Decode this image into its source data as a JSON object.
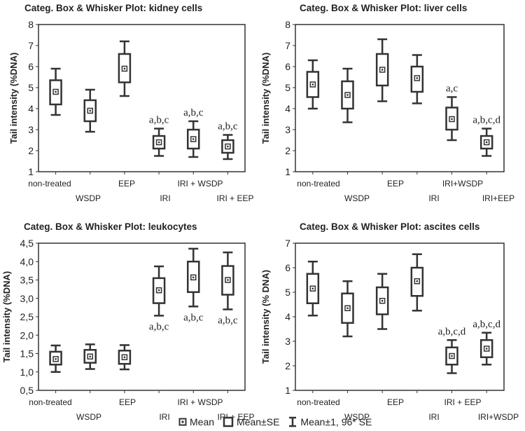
{
  "chart_data": [
    {
      "type": "box",
      "title": "Categ. Box & Whisker Plot: kidney cells",
      "ylabel": "Tail intensity (%DNA)",
      "ylim": [
        1,
        8
      ],
      "yticks": [
        1,
        2,
        3,
        4,
        5,
        6,
        7,
        8
      ],
      "categories": [
        "non-treated",
        "WSDP",
        "EEP",
        "IRI",
        "IRI + WSDP",
        "IRI + EEP"
      ],
      "boxes": [
        {
          "mean": 4.8,
          "se_low": 4.2,
          "se_high": 5.35,
          "ci_low": 3.7,
          "ci_high": 5.9,
          "annotation": ""
        },
        {
          "mean": 3.9,
          "se_low": 3.4,
          "se_high": 4.4,
          "ci_low": 2.9,
          "ci_high": 4.9,
          "annotation": ""
        },
        {
          "mean": 5.9,
          "se_low": 5.25,
          "se_high": 6.6,
          "ci_low": 4.6,
          "ci_high": 7.2,
          "annotation": ""
        },
        {
          "mean": 2.4,
          "se_low": 2.1,
          "se_high": 2.7,
          "ci_low": 1.75,
          "ci_high": 3.05,
          "annotation": "a,b,c"
        },
        {
          "mean": 2.55,
          "se_low": 2.1,
          "se_high": 3.0,
          "ci_low": 1.7,
          "ci_high": 3.4,
          "annotation": "a,b,c"
        },
        {
          "mean": 2.2,
          "se_low": 1.9,
          "se_high": 2.5,
          "ci_low": 1.6,
          "ci_high": 2.75,
          "annotation": "a,b,c"
        }
      ]
    },
    {
      "type": "box",
      "title": "Categ. Box & Whisker Plot: liver cells",
      "ylabel": "Tail intensity (%DNA)",
      "ylim": [
        1,
        8
      ],
      "yticks": [
        1,
        2,
        3,
        4,
        5,
        6,
        7,
        8
      ],
      "categories": [
        "non-treated",
        "WSDP",
        "EEP",
        "IRI",
        "IRI+WSDP",
        "IRI+EEP"
      ],
      "boxes": [
        {
          "mean": 5.15,
          "se_low": 4.55,
          "se_high": 5.75,
          "ci_low": 4.0,
          "ci_high": 6.3,
          "annotation": ""
        },
        {
          "mean": 4.65,
          "se_low": 4.0,
          "se_high": 5.3,
          "ci_low": 3.35,
          "ci_high": 5.9,
          "annotation": ""
        },
        {
          "mean": 5.85,
          "se_low": 5.1,
          "se_high": 6.6,
          "ci_low": 4.35,
          "ci_high": 7.3,
          "annotation": ""
        },
        {
          "mean": 5.45,
          "se_low": 4.8,
          "se_high": 6.0,
          "ci_low": 4.25,
          "ci_high": 6.55,
          "annotation": ""
        },
        {
          "mean": 3.5,
          "se_low": 3.0,
          "se_high": 4.05,
          "ci_low": 2.5,
          "ci_high": 4.55,
          "annotation": "a,c"
        },
        {
          "mean": 2.4,
          "se_low": 2.1,
          "se_high": 2.7,
          "ci_low": 1.75,
          "ci_high": 3.05,
          "annotation": "a,b,c,d"
        }
      ]
    },
    {
      "type": "box",
      "title": "Categ. Box & Whisker Plot: leukocytes",
      "ylabel": "Tail intensity (%DNA)",
      "ylim": [
        0.5,
        4.5
      ],
      "yticks": [
        "0,5",
        "1,0",
        "1,5",
        "2,0",
        "2,5",
        "3,0",
        "3,5",
        "4,0",
        "4,5"
      ],
      "categories": [
        "non-treated",
        "WSDP",
        "EEP",
        "IRI",
        "IRI + WSDP",
        "IRI + EEP"
      ],
      "boxes": [
        {
          "mean": 1.35,
          "se_low": 1.2,
          "se_high": 1.55,
          "ci_low": 1.0,
          "ci_high": 1.72,
          "annotation": ""
        },
        {
          "mean": 1.42,
          "se_low": 1.25,
          "se_high": 1.6,
          "ci_low": 1.08,
          "ci_high": 1.75,
          "annotation": ""
        },
        {
          "mean": 1.4,
          "se_low": 1.22,
          "se_high": 1.58,
          "ci_low": 1.07,
          "ci_high": 1.73,
          "annotation": ""
        },
        {
          "mean": 3.22,
          "se_low": 2.87,
          "se_high": 3.55,
          "ci_low": 2.53,
          "ci_high": 3.87,
          "annotation": "a,b,c"
        },
        {
          "mean": 3.57,
          "se_low": 3.17,
          "se_high": 4.0,
          "ci_low": 2.78,
          "ci_high": 4.35,
          "annotation": "a,b,c"
        },
        {
          "mean": 3.5,
          "se_low": 3.1,
          "se_high": 3.88,
          "ci_low": 2.7,
          "ci_high": 4.25,
          "annotation": "a,b,c"
        }
      ]
    },
    {
      "type": "box",
      "title": "Categ. Box & Whisker Plot: ascites cells",
      "ylabel": "Tail intensity (% DNA)",
      "ylim": [
        1,
        7
      ],
      "yticks": [
        1,
        2,
        3,
        4,
        5,
        6,
        7
      ],
      "categories": [
        "non-treated",
        "WSDP",
        "EEP",
        "IRI",
        "IRI + EEP",
        "IRI+WSDP"
      ],
      "boxes": [
        {
          "mean": 5.15,
          "se_low": 4.55,
          "se_high": 5.75,
          "ci_low": 4.05,
          "ci_high": 6.25,
          "annotation": ""
        },
        {
          "mean": 4.35,
          "se_low": 3.75,
          "se_high": 4.95,
          "ci_low": 3.2,
          "ci_high": 5.45,
          "annotation": ""
        },
        {
          "mean": 4.65,
          "se_low": 4.1,
          "se_high": 5.2,
          "ci_low": 3.5,
          "ci_high": 5.75,
          "annotation": ""
        },
        {
          "mean": 5.45,
          "se_low": 4.85,
          "se_high": 6.0,
          "ci_low": 4.25,
          "ci_high": 6.55,
          "annotation": ""
        },
        {
          "mean": 2.4,
          "se_low": 2.05,
          "se_high": 2.75,
          "ci_low": 1.7,
          "ci_high": 3.05,
          "annotation": "a,b,c,d"
        },
        {
          "mean": 2.7,
          "se_low": 2.35,
          "se_high": 3.05,
          "ci_low": 2.05,
          "ci_high": 3.35,
          "annotation": "a,b,c,d"
        }
      ]
    }
  ],
  "legend": {
    "mean_label": "Mean",
    "se_label": "Mean±SE",
    "ci_label": "Mean±1, 96* SE"
  },
  "colors": {
    "stroke": "#333333",
    "background": "#ffffff"
  }
}
